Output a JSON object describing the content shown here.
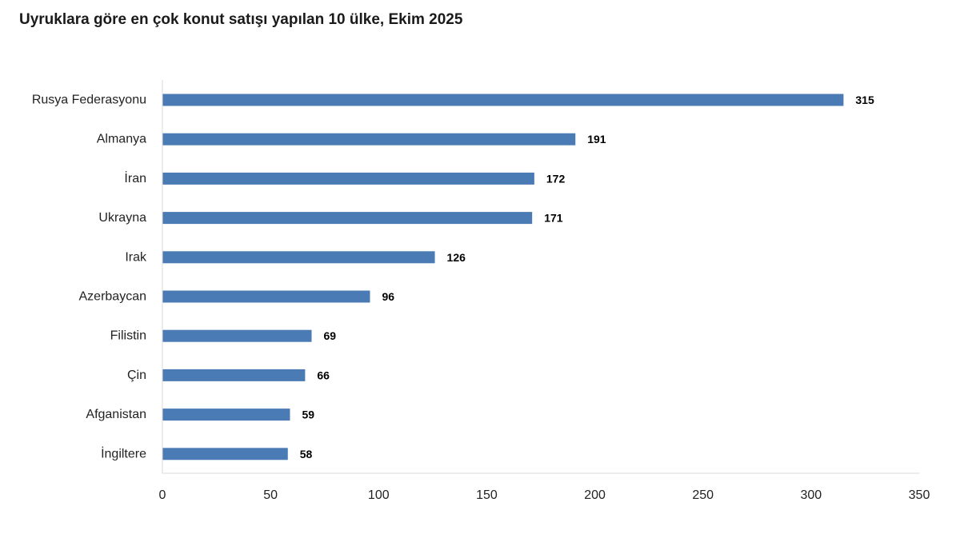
{
  "chart_data": {
    "type": "bar",
    "orientation": "horizontal",
    "title": "Uyruklara göre en çok konut satışı yapılan 10 ülke, Ekim 2025",
    "categories": [
      "Rusya Federasyonu",
      "Almanya",
      "İran",
      "Ukrayna",
      "Irak",
      "Azerbaycan",
      "Filistin",
      "Çin",
      "Afganistan",
      "İngiltere"
    ],
    "values": [
      315,
      191,
      172,
      171,
      126,
      96,
      69,
      66,
      59,
      58
    ],
    "xlim": [
      0,
      350
    ],
    "xticks": [
      0,
      50,
      100,
      150,
      200,
      250,
      300,
      350
    ],
    "xlabel": "",
    "ylabel": "",
    "grid": false,
    "legend": "none",
    "data_labels": true,
    "bar_color": "#4a7bb5",
    "axis_color": "#d9d9d9"
  }
}
